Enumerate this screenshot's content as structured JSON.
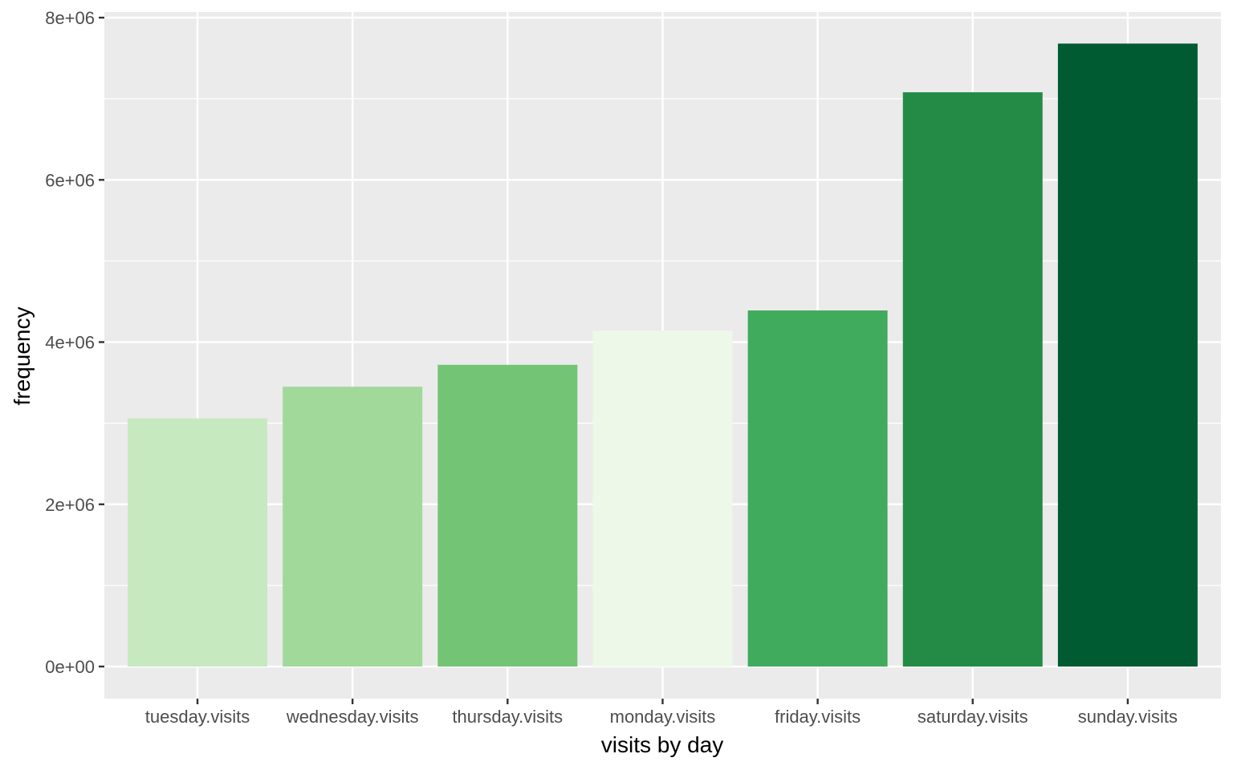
{
  "chart_data": {
    "type": "bar",
    "categories": [
      "tuesday.visits",
      "wednesday.visits",
      "thursday.visits",
      "monday.visits",
      "friday.visits",
      "saturday.visits",
      "sunday.visits"
    ],
    "values": [
      3060000,
      3450000,
      3720000,
      4140000,
      4390000,
      7080000,
      7680000
    ],
    "colors": [
      "#c7e9c0",
      "#a1d99b",
      "#74c476",
      "#edf8e9",
      "#41ab5d",
      "#238b45",
      "#005a32"
    ],
    "xlabel": "visits by day",
    "ylabel": "frequency",
    "ylim": [
      0,
      8000000
    ],
    "yticks": [
      0,
      2000000,
      4000000,
      6000000,
      8000000
    ],
    "ytick_labels": [
      "0e+00",
      "2e+06",
      "4e+06",
      "6e+06",
      "8e+06"
    ],
    "grid": true,
    "legend": "none",
    "panel_background": "#ebebeb",
    "grid_color": "#ffffff"
  }
}
